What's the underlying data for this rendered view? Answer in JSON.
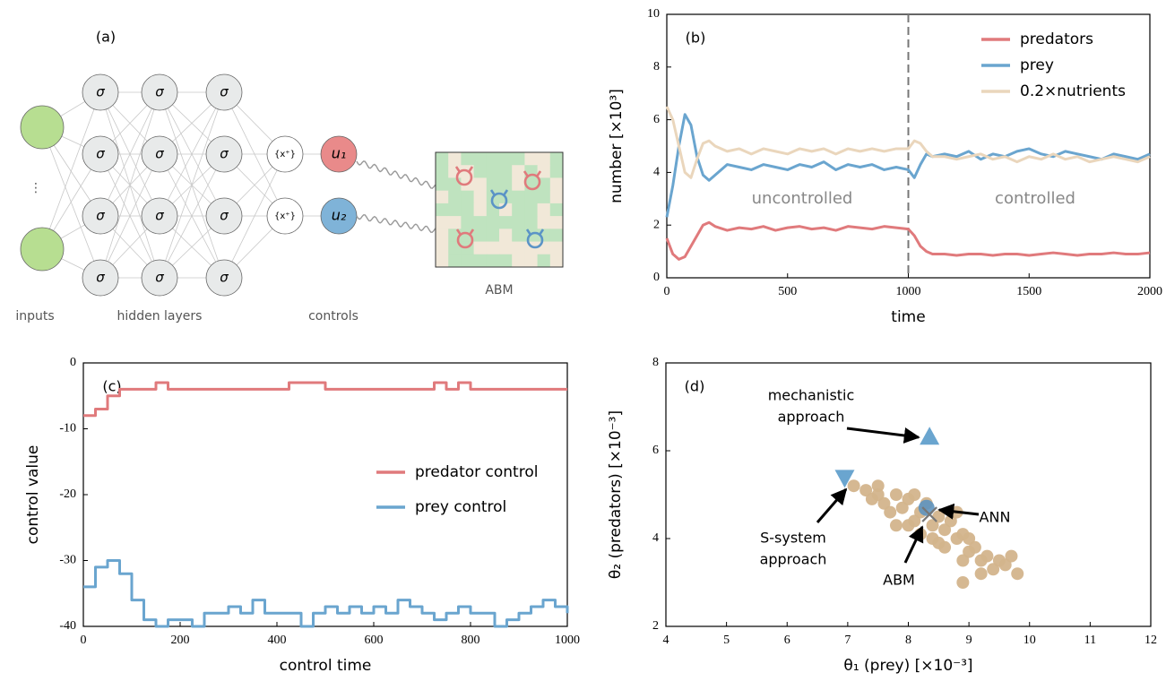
{
  "diagram": {
    "panel_label": "(a)",
    "input_label": "inputs",
    "hidden_label": "hidden layers",
    "controls_label": "controls",
    "abm_label": "ABM",
    "ellipsis": "⋮",
    "hidden_symbol": "σ",
    "rectifier": "{x⁺}",
    "controls": [
      "u₁",
      "u₂"
    ]
  },
  "chart_data": [
    {
      "type": "line",
      "panel_label": "(b)",
      "xlabel": "time",
      "ylabel": "number [×10³]",
      "x": [
        0,
        25,
        50,
        75,
        100,
        125,
        150,
        175,
        200,
        250,
        300,
        350,
        400,
        450,
        500,
        550,
        600,
        650,
        700,
        750,
        800,
        850,
        900,
        950,
        1000,
        1025,
        1050,
        1075,
        1100,
        1150,
        1200,
        1250,
        1300,
        1350,
        1400,
        1450,
        1500,
        1550,
        1600,
        1650,
        1700,
        1750,
        1800,
        1850,
        1900,
        1950,
        2000
      ],
      "series": [
        {
          "name": "predators",
          "color": "#e07a7c",
          "values": [
            1.5,
            0.9,
            0.7,
            0.8,
            1.2,
            1.6,
            2.0,
            2.1,
            1.95,
            1.8,
            1.9,
            1.85,
            1.95,
            1.8,
            1.9,
            1.95,
            1.85,
            1.9,
            1.8,
            1.95,
            1.9,
            1.85,
            1.95,
            1.9,
            1.85,
            1.6,
            1.2,
            1.0,
            0.9,
            0.9,
            0.85,
            0.9,
            0.9,
            0.85,
            0.9,
            0.9,
            0.85,
            0.9,
            0.95,
            0.9,
            0.85,
            0.9,
            0.9,
            0.95,
            0.9,
            0.9,
            0.95
          ]
        },
        {
          "name": "prey",
          "color": "#6aa5cf",
          "values": [
            2.3,
            3.5,
            5.0,
            6.2,
            5.8,
            4.6,
            3.9,
            3.7,
            3.9,
            4.3,
            4.2,
            4.1,
            4.3,
            4.2,
            4.1,
            4.3,
            4.2,
            4.4,
            4.1,
            4.3,
            4.2,
            4.3,
            4.1,
            4.2,
            4.1,
            3.8,
            4.3,
            4.7,
            4.6,
            4.7,
            4.6,
            4.8,
            4.5,
            4.7,
            4.6,
            4.8,
            4.9,
            4.7,
            4.6,
            4.8,
            4.7,
            4.6,
            4.5,
            4.7,
            4.6,
            4.5,
            4.7
          ]
        },
        {
          "name": "0.2×nutrients",
          "color": "#ead6bc",
          "values": [
            6.5,
            6.0,
            5.0,
            4.0,
            3.8,
            4.5,
            5.1,
            5.2,
            5.0,
            4.8,
            4.9,
            4.7,
            4.9,
            4.8,
            4.7,
            4.9,
            4.8,
            4.9,
            4.7,
            4.9,
            4.8,
            4.9,
            4.8,
            4.9,
            4.9,
            5.2,
            5.1,
            4.8,
            4.6,
            4.6,
            4.5,
            4.6,
            4.7,
            4.5,
            4.6,
            4.4,
            4.6,
            4.5,
            4.7,
            4.5,
            4.6,
            4.4,
            4.5,
            4.6,
            4.5,
            4.4,
            4.6
          ]
        }
      ],
      "xlim": [
        0,
        2000
      ],
      "ylim": [
        0,
        10
      ],
      "xticks": [
        0,
        500,
        1000,
        1500,
        2000
      ],
      "yticks": [
        0,
        2,
        4,
        6,
        8,
        10
      ],
      "vline": 1000,
      "annotations": [
        "uncontrolled",
        "controlled"
      ],
      "legend": "upper right"
    },
    {
      "type": "step",
      "panel_label": "(c)",
      "xlabel": "control time",
      "ylabel": "control value",
      "x": [
        0,
        25,
        50,
        75,
        100,
        125,
        150,
        175,
        200,
        225,
        250,
        275,
        300,
        325,
        350,
        375,
        400,
        425,
        450,
        475,
        500,
        525,
        550,
        575,
        600,
        625,
        650,
        675,
        700,
        725,
        750,
        775,
        800,
        825,
        850,
        875,
        900,
        925,
        950,
        975,
        1000
      ],
      "series": [
        {
          "name": "predator control",
          "color": "#e07a7c",
          "values": [
            -8,
            -7,
            -5,
            -4,
            -4,
            -4,
            -3,
            -4,
            -4,
            -4,
            -4,
            -4,
            -4,
            -4,
            -4,
            -4,
            -4,
            -3,
            -3,
            -3,
            -4,
            -4,
            -4,
            -4,
            -4,
            -4,
            -4,
            -4,
            -4,
            -3,
            -4,
            -3,
            -4,
            -4,
            -4,
            -4,
            -4,
            -4,
            -4,
            -4,
            -4
          ]
        },
        {
          "name": "prey control",
          "color": "#6aa5cf",
          "values": [
            -34,
            -31,
            -30,
            -32,
            -36,
            -39,
            -40,
            -39,
            -39,
            -40,
            -38,
            -38,
            -37,
            -38,
            -36,
            -38,
            -38,
            -38,
            -40,
            -38,
            -37,
            -38,
            -37,
            -38,
            -37,
            -38,
            -36,
            -37,
            -38,
            -39,
            -38,
            -37,
            -38,
            -38,
            -40,
            -39,
            -38,
            -37,
            -36,
            -37,
            -38
          ]
        }
      ],
      "xlim": [
        0,
        1000
      ],
      "ylim": [
        -40,
        0
      ],
      "xticks": [
        0,
        200,
        400,
        600,
        800,
        1000
      ],
      "yticks": [
        0,
        -10,
        -20,
        -30,
        -40
      ],
      "legend": "center right"
    },
    {
      "type": "scatter",
      "panel_label": "(d)",
      "xlabel": "θ₁ (prey) [×10⁻³]",
      "ylabel": "θ₂ (predators) [×10⁻³]",
      "color": "#d3b48c",
      "x": [
        7.1,
        7.3,
        7.5,
        7.4,
        7.6,
        7.8,
        7.7,
        7.9,
        8.0,
        8.1,
        8.2,
        8.0,
        8.3,
        8.4,
        8.5,
        8.6,
        8.4,
        8.7,
        8.8,
        8.6,
        8.9,
        9.0,
        8.9,
        9.1,
        9.2,
        9.3,
        9.4,
        9.5,
        9.6,
        9.8,
        8.9,
        9.2,
        7.8,
        8.2,
        8.8,
        7.5,
        9.0,
        8.5,
        9.7,
        8.1
      ],
      "y": [
        5.2,
        5.1,
        5.2,
        4.9,
        4.8,
        5.0,
        4.6,
        4.7,
        4.9,
        4.4,
        4.6,
        4.3,
        4.8,
        4.3,
        4.5,
        4.2,
        4.0,
        4.4,
        4.0,
        3.8,
        4.1,
        3.7,
        3.5,
        3.8,
        3.5,
        3.6,
        3.3,
        3.5,
        3.4,
        3.2,
        3.0,
        3.2,
        4.3,
        4.1,
        4.6,
        5.0,
        4.0,
        3.9,
        3.6,
        5.0
      ],
      "markers": [
        {
          "label": [
            "mechanistic",
            "approach"
          ],
          "x": 8.35,
          "y": 6.3,
          "shape": "triangle-up",
          "color": "#6aa5cf"
        },
        {
          "label": [
            "S-system",
            "approach"
          ],
          "x": 6.95,
          "y": 5.4,
          "shape": "triangle-down",
          "color": "#6aa5cf"
        },
        {
          "label": [
            "ANN"
          ],
          "x": 8.3,
          "y": 4.7,
          "shape": "circle",
          "color": "#5e93bf"
        },
        {
          "label": [
            "ABM"
          ],
          "x": 8.35,
          "y": 4.55,
          "shape": "x",
          "color": "#777777"
        }
      ],
      "xlim": [
        4,
        12
      ],
      "ylim": [
        2,
        8
      ],
      "xticks": [
        4,
        5,
        6,
        7,
        8,
        9,
        10,
        11,
        12
      ],
      "yticks": [
        2,
        4,
        6,
        8
      ]
    }
  ]
}
